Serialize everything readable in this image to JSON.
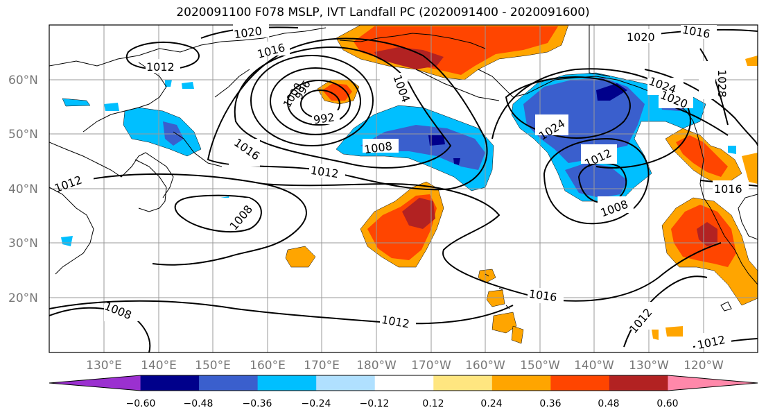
{
  "title": "2020091100 F078 MSLP, IVT Landfall PC (2020091400 - 2020091600)",
  "lat_labels": [
    "60°N",
    "50°N",
    "40°N",
    "30°N",
    "20°N"
  ],
  "lon_labels": [
    "130°E",
    "140°E",
    "150°E",
    "160°E",
    "170°E",
    "180°W",
    "170°W",
    "160°W",
    "150°W",
    "140°W",
    "130°W",
    "120°W"
  ],
  "colorbar": {
    "ticks": [
      "−0.60",
      "−0.48",
      "−0.36",
      "−0.24",
      "−0.12",
      "0.12",
      "0.24",
      "0.36",
      "0.48",
      "0.60"
    ],
    "colors": [
      "#9b30d0",
      "#00008b",
      "#3a5fcd",
      "#00bfff",
      "#b0e0ff",
      "#ffffff",
      "#ffe680",
      "#ffa500",
      "#ff4500",
      "#b22222",
      "#ff88aa"
    ]
  },
  "isobar_labels": {
    "l1020a": "1020",
    "l1016a": "1016",
    "l1012a": "1012",
    "l1000": "1000",
    "l996": "996",
    "l992": "992",
    "l1004": "1004",
    "l1008a": "1008",
    "l1016b": "1016",
    "l1012b": "1012",
    "l1008b": "1008",
    "l1012c": "1012",
    "l1008c": "1008",
    "l1012d": "1012",
    "l1016c": "1016",
    "l1024a": "1024",
    "l1012e": "1012",
    "l1008d": "1008",
    "l1020b": "1020",
    "l1016d": "1016",
    "l1024b": "1024",
    "l1020c": "1020",
    "l1028": "1028",
    "l1016e": "1016",
    "l1012f": "1012",
    "l1012g": "1012"
  }
}
